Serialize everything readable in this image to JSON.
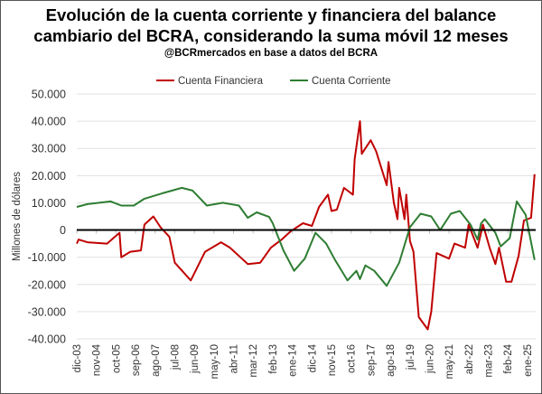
{
  "chart_data": {
    "type": "line",
    "title": "Evolución de la cuenta corriente y financiera del balance",
    "title_line2": "cambiario del BCRA, considerando la suma móvil 12 meses",
    "subtitle": "@BCRmercados en base a datos del BCRA",
    "ylabel": "Millones de dólares",
    "xlabel": "",
    "ylim": [
      -40000,
      50000
    ],
    "yticks": [
      50000,
      40000,
      30000,
      20000,
      10000,
      0,
      -10000,
      -20000,
      -30000,
      -40000
    ],
    "ytick_labels": [
      "50.000",
      "40.000",
      "30.000",
      "20.000",
      "10.000",
      "0",
      "-10.000",
      "-20.000",
      "-30.000",
      "-40.000"
    ],
    "x_unit": "months since dic-03",
    "xlim": [
      0,
      258
    ],
    "xtick_step_months": 11,
    "xtick_labels": [
      "dic-03",
      "nov-04",
      "oct-05",
      "sep-06",
      "ago-07",
      "jul-08",
      "jun-09",
      "may-10",
      "abr-11",
      "mar-12",
      "feb-13",
      "ene-14",
      "dic-14",
      "nov-15",
      "oct-16",
      "sep-17",
      "ago-18",
      "jul-19",
      "jun-20",
      "may-21",
      "abr-22",
      "mar-23",
      "feb-24",
      "ene-25"
    ],
    "grid": true,
    "legend_position": "top",
    "series": [
      {
        "name": "Cuenta Financiera",
        "color": "#c00000",
        "points": [
          [
            0,
            -5000
          ],
          [
            1,
            -3500
          ],
          [
            6,
            -4500
          ],
          [
            17,
            -5000
          ],
          [
            24,
            -1000
          ],
          [
            25,
            -10000
          ],
          [
            30,
            -8000
          ],
          [
            36,
            -7500
          ],
          [
            38,
            2000
          ],
          [
            43,
            5000
          ],
          [
            47,
            1000
          ],
          [
            52,
            -2500
          ],
          [
            55,
            -12000
          ],
          [
            64,
            -18500
          ],
          [
            72,
            -8000
          ],
          [
            81,
            -4500
          ],
          [
            86,
            -6500
          ],
          [
            96,
            -12500
          ],
          [
            103,
            -12000
          ],
          [
            109,
            -6500
          ],
          [
            115,
            -3500
          ],
          [
            120,
            -500
          ],
          [
            127,
            2500
          ],
          [
            132,
            1500
          ],
          [
            136,
            8500
          ],
          [
            141,
            13000
          ],
          [
            143,
            7000
          ],
          [
            146,
            7500
          ],
          [
            150,
            15500
          ],
          [
            155,
            13000
          ],
          [
            156,
            26000
          ],
          [
            159,
            40000
          ],
          [
            160,
            28000
          ],
          [
            165,
            33000
          ],
          [
            168,
            29000
          ],
          [
            174,
            16500
          ],
          [
            175,
            25000
          ],
          [
            178,
            10000
          ],
          [
            180,
            4000
          ],
          [
            181,
            15500
          ],
          [
            184,
            4000
          ],
          [
            185,
            13000
          ],
          [
            187,
            -4000
          ],
          [
            189,
            -8000
          ],
          [
            192,
            -32000
          ],
          [
            197,
            -36500
          ],
          [
            199,
            -30000
          ],
          [
            202,
            -8500
          ],
          [
            209,
            -10500
          ],
          [
            212,
            -5000
          ],
          [
            218,
            -6500
          ],
          [
            220,
            2000
          ],
          [
            225,
            -6500
          ],
          [
            228,
            2000
          ],
          [
            232,
            -7000
          ],
          [
            235,
            -12500
          ],
          [
            237,
            -6500
          ],
          [
            241,
            -19000
          ],
          [
            244,
            -19000
          ],
          [
            248,
            -9500
          ],
          [
            251,
            3500
          ],
          [
            255,
            4500
          ],
          [
            257,
            20500
          ]
        ]
      },
      {
        "name": "Cuenta Corriente",
        "color": "#2e7d32",
        "points": [
          [
            0,
            8500
          ],
          [
            6,
            9500
          ],
          [
            19,
            10500
          ],
          [
            25,
            9000
          ],
          [
            32,
            9000
          ],
          [
            38,
            11500
          ],
          [
            48,
            13500
          ],
          [
            59,
            15500
          ],
          [
            65,
            14500
          ],
          [
            73,
            9000
          ],
          [
            82,
            10000
          ],
          [
            91,
            9000
          ],
          [
            96,
            4500
          ],
          [
            101,
            6500
          ],
          [
            108,
            4800
          ],
          [
            110,
            2500
          ],
          [
            116,
            -7500
          ],
          [
            122,
            -15000
          ],
          [
            128,
            -10500
          ],
          [
            134,
            -1000
          ],
          [
            140,
            -5000
          ],
          [
            145,
            -11000
          ],
          [
            152,
            -18500
          ],
          [
            157,
            -15000
          ],
          [
            159,
            -18000
          ],
          [
            162,
            -13000
          ],
          [
            167,
            -15000
          ],
          [
            174,
            -20500
          ],
          [
            181,
            -12000
          ],
          [
            187,
            1000
          ],
          [
            193,
            6000
          ],
          [
            199,
            5000
          ],
          [
            204,
            0
          ],
          [
            210,
            6000
          ],
          [
            215,
            7000
          ],
          [
            221,
            2000
          ],
          [
            225,
            -3500
          ],
          [
            227,
            2500
          ],
          [
            229,
            4000
          ],
          [
            235,
            -1000
          ],
          [
            238,
            -6000
          ],
          [
            243,
            -3000
          ],
          [
            247,
            10500
          ],
          [
            252,
            5600
          ],
          [
            257,
            -11000
          ]
        ]
      }
    ]
  }
}
